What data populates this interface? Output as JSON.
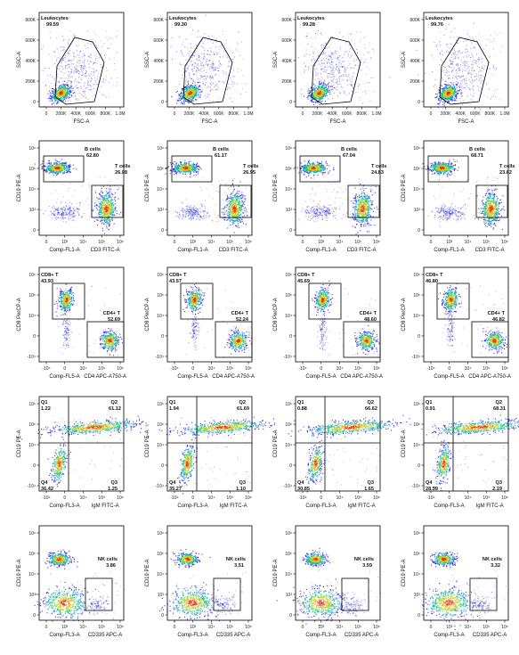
{
  "figure": {
    "colors": {
      "frame": "#000000",
      "gate": "#000000",
      "density": [
        "#1b1bd6",
        "#1e8fd0",
        "#19c07f",
        "#a6d62a",
        "#f2b21c",
        "#e2341d"
      ]
    }
  },
  "chart_data": [
    {
      "type": "scatter",
      "row": 0,
      "col": 0,
      "xlabel": "FSC-A",
      "ylabel": "SSC-A",
      "xticks": [
        "0",
        "200K",
        "400K",
        "600K",
        "800K",
        "1.0M"
      ],
      "yticks": [
        "0",
        "200K",
        "400K",
        "600K",
        "800K"
      ],
      "x_range": [
        0,
        1000000
      ],
      "y_range": [
        0,
        900000
      ],
      "gates": [
        {
          "label": "Leukocytes",
          "value": "99.59",
          "shape": "polygon"
        }
      ]
    },
    {
      "type": "scatter",
      "row": 0,
      "col": 1,
      "xlabel": "FSC-A",
      "ylabel": "SSC-A",
      "xticks": [
        "0",
        "200K",
        "400K",
        "600K",
        "800K",
        "1.0M"
      ],
      "yticks": [
        "0",
        "200K",
        "400K",
        "600K",
        "800K"
      ],
      "x_range": [
        0,
        1000000
      ],
      "y_range": [
        0,
        900000
      ],
      "gates": [
        {
          "label": "Leukocytes",
          "value": "99.30",
          "shape": "polygon"
        }
      ]
    },
    {
      "type": "scatter",
      "row": 0,
      "col": 2,
      "xlabel": "FSC-A",
      "ylabel": "SSC-A",
      "xticks": [
        "0",
        "200K",
        "400K",
        "600K",
        "800K",
        "1.0M"
      ],
      "yticks": [
        "0",
        "200K",
        "400K",
        "600K",
        "800K"
      ],
      "x_range": [
        0,
        1000000
      ],
      "y_range": [
        0,
        900000
      ],
      "gates": [
        {
          "label": "Leukocytes",
          "value": "99.28",
          "shape": "polygon"
        }
      ]
    },
    {
      "type": "scatter",
      "row": 0,
      "col": 3,
      "xlabel": "FSC-A",
      "ylabel": "SSC-A",
      "xticks": [
        "0",
        "200K",
        "400K",
        "600K",
        "800K",
        "1.0M"
      ],
      "yticks": [
        "0",
        "200K",
        "400K",
        "600K",
        "800K"
      ],
      "x_range": [
        0,
        1000000
      ],
      "y_range": [
        0,
        900000
      ],
      "gates": [
        {
          "label": "Leukocytes",
          "value": "99.76",
          "shape": "polygon"
        }
      ]
    },
    {
      "type": "scatter",
      "row": 1,
      "col": 0,
      "xlabel": "Comp-FL1-A",
      "xlabel2": "CD3 FITC-A",
      "ylabel": "CD19 PE-A",
      "xticks": [
        "0",
        "10³",
        "10⁴",
        "10⁵",
        "10⁶"
      ],
      "yticks": [
        "0",
        "10³",
        "10⁴",
        "10⁵",
        "10⁶"
      ],
      "gates": [
        {
          "label": "B cells",
          "value": "62.80"
        },
        {
          "label": "T cells",
          "value": "26.98"
        }
      ]
    },
    {
      "type": "scatter",
      "row": 1,
      "col": 1,
      "xlabel": "Comp-FL1-A",
      "xlabel2": "CD3 FITC-A",
      "ylabel": "CD19 PE-A",
      "xticks": [
        "0",
        "10³",
        "10⁴",
        "10⁵",
        "10⁶"
      ],
      "yticks": [
        "0",
        "10³",
        "10⁴",
        "10⁵",
        "10⁶"
      ],
      "gates": [
        {
          "label": "B cells",
          "value": "61.17"
        },
        {
          "label": "T cells",
          "value": "26.95"
        }
      ]
    },
    {
      "type": "scatter",
      "row": 1,
      "col": 2,
      "xlabel": "Comp-FL1-A",
      "xlabel2": "CD3 FITC-A",
      "ylabel": "CD19 PE-A",
      "xticks": [
        "0",
        "10³",
        "10⁴",
        "10⁵",
        "10⁶"
      ],
      "yticks": [
        "0",
        "10³",
        "10⁴",
        "10⁵",
        "10⁶"
      ],
      "gates": [
        {
          "label": "B cells",
          "value": "67.04"
        },
        {
          "label": "T cells",
          "value": "24.83"
        }
      ]
    },
    {
      "type": "scatter",
      "row": 1,
      "col": 3,
      "xlabel": "Comp-FL1-A",
      "xlabel2": "CD3 FITC-A",
      "ylabel": "CD19 PE-A",
      "xticks": [
        "0",
        "10³",
        "10⁴",
        "10⁵",
        "10⁶"
      ],
      "yticks": [
        "0",
        "10³",
        "10⁴",
        "10⁵",
        "10⁶"
      ],
      "gates": [
        {
          "label": "B cells",
          "value": "68.71"
        },
        {
          "label": "T cells",
          "value": "23.62"
        }
      ]
    },
    {
      "type": "scatter",
      "row": 2,
      "col": 0,
      "xlabel": "Comp-FL5-A",
      "xlabel2": "CD4 APC-A750-A",
      "ylabel": "CD8 PerCP-A",
      "xticks": [
        "-10⁴",
        "0",
        "10⁴",
        "10⁵",
        "10⁶"
      ],
      "yticks": [
        "-10⁴",
        "0",
        "10⁴",
        "10⁵",
        "10⁶"
      ],
      "gates": [
        {
          "label": "CD8+ T",
          "value": "43.93"
        },
        {
          "label": "CD4+ T",
          "value": "52.69"
        }
      ]
    },
    {
      "type": "scatter",
      "row": 2,
      "col": 1,
      "xlabel": "Comp-FL5-A",
      "xlabel2": "CD4 APC-A750-A",
      "ylabel": "CD8 PerCP-A",
      "xticks": [
        "-10⁴",
        "0",
        "10⁴",
        "10⁵",
        "10⁶"
      ],
      "yticks": [
        "-10⁴",
        "0",
        "10⁴",
        "10⁵",
        "10⁶"
      ],
      "gates": [
        {
          "label": "CD8+ T",
          "value": "43.57"
        },
        {
          "label": "CD4+ T",
          "value": "52.24"
        }
      ]
    },
    {
      "type": "scatter",
      "row": 2,
      "col": 2,
      "xlabel": "Comp-FL5-A",
      "xlabel2": "CD4 APC-A750-A",
      "ylabel": "CD8 PerCP-A",
      "xticks": [
        "-10⁴",
        "0",
        "10⁴",
        "10⁵",
        "10⁶"
      ],
      "yticks": [
        "-10⁴",
        "0",
        "10⁴",
        "10⁵",
        "10⁶"
      ],
      "gates": [
        {
          "label": "CD8+ T",
          "value": "45.69"
        },
        {
          "label": "CD4+ T",
          "value": "48.60"
        }
      ]
    },
    {
      "type": "scatter",
      "row": 2,
      "col": 3,
      "xlabel": "Comp-FL5-A",
      "xlabel2": "CD4 APC-A750-A",
      "ylabel": "CD8 PerCP-A",
      "xticks": [
        "-10⁴",
        "0",
        "10⁴",
        "10⁵",
        "10⁶"
      ],
      "yticks": [
        "-10⁴",
        "0",
        "10⁴",
        "10⁵",
        "10⁶"
      ],
      "gates": [
        {
          "label": "CD8+ T",
          "value": "46.80"
        },
        {
          "label": "CD4+ T",
          "value": "46.82"
        }
      ]
    },
    {
      "type": "scatter",
      "row": 3,
      "col": 0,
      "xlabel": "Comp-FL3-A",
      "xlabel2": "IgM FITC-A",
      "ylabel": "CD19 PE-A",
      "xticks": [
        "-10⁴",
        "0",
        "10⁴",
        "10⁵",
        "10⁶"
      ],
      "yticks": [
        "-10⁴",
        "0",
        "10⁴",
        "10⁵",
        "10⁶"
      ],
      "quadrants": {
        "Q1": "1.22",
        "Q2": "61.12",
        "Q3": "1.25",
        "Q4": "36.42"
      }
    },
    {
      "type": "scatter",
      "row": 3,
      "col": 1,
      "xlabel": "Comp-FL3-A",
      "xlabel2": "IgM FITC-A",
      "ylabel": "CD19 PE-A",
      "xticks": [
        "-10⁴",
        "0",
        "10⁴",
        "10⁵",
        "10⁶"
      ],
      "yticks": [
        "-10⁴",
        "0",
        "10⁴",
        "10⁵",
        "10⁶"
      ],
      "quadrants": {
        "Q1": "1.94",
        "Q2": "61.69",
        "Q3": "1.10",
        "Q4": "35.27"
      }
    },
    {
      "type": "scatter",
      "row": 3,
      "col": 2,
      "xlabel": "Comp-FL3-A",
      "xlabel2": "IgM FITC-A",
      "ylabel": "CD19 PE-A",
      "xticks": [
        "-10⁴",
        "0",
        "10⁴",
        "10⁵",
        "10⁶"
      ],
      "yticks": [
        "-10⁴",
        "0",
        "10⁴",
        "10⁵",
        "10⁶"
      ],
      "quadrants": {
        "Q1": "0.88",
        "Q2": "66.62",
        "Q3": "1.65",
        "Q4": "30.85"
      }
    },
    {
      "type": "scatter",
      "row": 3,
      "col": 3,
      "xlabel": "Comp-FL3-A",
      "xlabel2": "IgM FITC-A",
      "ylabel": "CD19 PE-A",
      "xticks": [
        "-10⁴",
        "0",
        "10⁴",
        "10⁵",
        "10⁶"
      ],
      "yticks": [
        "-10⁴",
        "0",
        "10⁴",
        "10⁵",
        "10⁶"
      ],
      "quadrants": {
        "Q1": "0.91",
        "Q2": "68.31",
        "Q3": "2.19",
        "Q4": "28.59"
      }
    },
    {
      "type": "scatter",
      "row": 4,
      "col": 0,
      "xlabel": "Comp-FL3-A",
      "xlabel2": "CD335 APC-A",
      "ylabel": "CD19 PE-A",
      "xticks": [
        "0",
        "10³",
        "10⁴",
        "10⁵",
        "10⁶"
      ],
      "yticks": [
        "0",
        "10³",
        "10⁴",
        "10⁵",
        "10⁶"
      ],
      "gates": [
        {
          "label": "NK cells",
          "value": "3.86"
        }
      ]
    },
    {
      "type": "scatter",
      "row": 4,
      "col": 1,
      "xlabel": "Comp-FL3-A",
      "xlabel2": "CD335 APC-A",
      "ylabel": "CD19 PE-A",
      "xticks": [
        "0",
        "10³",
        "10⁴",
        "10⁵",
        "10⁶"
      ],
      "yticks": [
        "0",
        "10³",
        "10⁴",
        "10⁵",
        "10⁶"
      ],
      "gates": [
        {
          "label": "NK cells",
          "value": "3.51"
        }
      ]
    },
    {
      "type": "scatter",
      "row": 4,
      "col": 2,
      "xlabel": "Comp-FL3-A",
      "xlabel2": "CD335 APC-A",
      "ylabel": "CD19 PE-A",
      "xticks": [
        "0",
        "10³",
        "10⁴",
        "10⁵",
        "10⁶"
      ],
      "yticks": [
        "0",
        "10³",
        "10⁴",
        "10⁵",
        "10⁶"
      ],
      "gates": [
        {
          "label": "NK cells",
          "value": "3.59"
        }
      ]
    },
    {
      "type": "scatter",
      "row": 4,
      "col": 3,
      "xlabel": "Comp-FL3-A",
      "xlabel2": "CD335 APC-A",
      "ylabel": "CD19 PE-A",
      "xticks": [
        "0",
        "10³",
        "10⁴",
        "10⁵",
        "10⁶"
      ],
      "yticks": [
        "0",
        "10³",
        "10⁴",
        "10⁵",
        "10⁶"
      ],
      "gates": [
        {
          "label": "NK cells",
          "value": "3.32"
        }
      ]
    }
  ]
}
